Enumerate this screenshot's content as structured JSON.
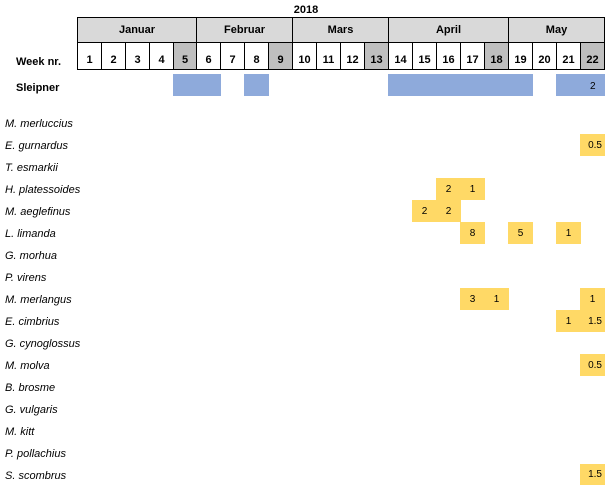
{
  "year": "2018",
  "week_label": "Week nr.",
  "months": [
    "Januar",
    "Februar",
    "Mars",
    "April",
    "May"
  ],
  "weeks": [
    "1",
    "2",
    "3",
    "4",
    "5",
    "6",
    "7",
    "8",
    "9",
    "10",
    "11",
    "12",
    "13",
    "14",
    "15",
    "16",
    "17",
    "18",
    "19",
    "20",
    "21",
    "22"
  ],
  "shaded_weeks": [
    "5",
    "9",
    "13",
    "18",
    "22"
  ],
  "sleipner": {
    "label": "Sleipner",
    "value": "2"
  },
  "species": [
    "M. merluccius",
    "E. gurnardus",
    "T. esmarkii",
    "H. platessoides",
    "M. aeglefinus",
    "L. limanda",
    "G. morhua",
    "P. virens",
    "M. merlangus",
    "E. cimbrius",
    "G. cynoglossus",
    "M. molva",
    "B. brosme",
    "G. vulgaris",
    "M. kitt",
    "P. pollachius",
    "S. scombrus"
  ],
  "values": {
    "egurnardus_w22": "0.5",
    "hplat_w16": "2",
    "hplat_w17": "1",
    "maegl_w15": "2",
    "maegl_w16": "2",
    "llim_w17": "8",
    "llim_w19": "5",
    "llim_w21": "1",
    "mmerl_w17": "3",
    "mmerl_w18": "1",
    "mmerl_w22": "1",
    "ecimb_w21": "1",
    "ecimb_w22": "1.5",
    "mmolva_w22": "0.5",
    "sscomb_w22": "1.5"
  }
}
